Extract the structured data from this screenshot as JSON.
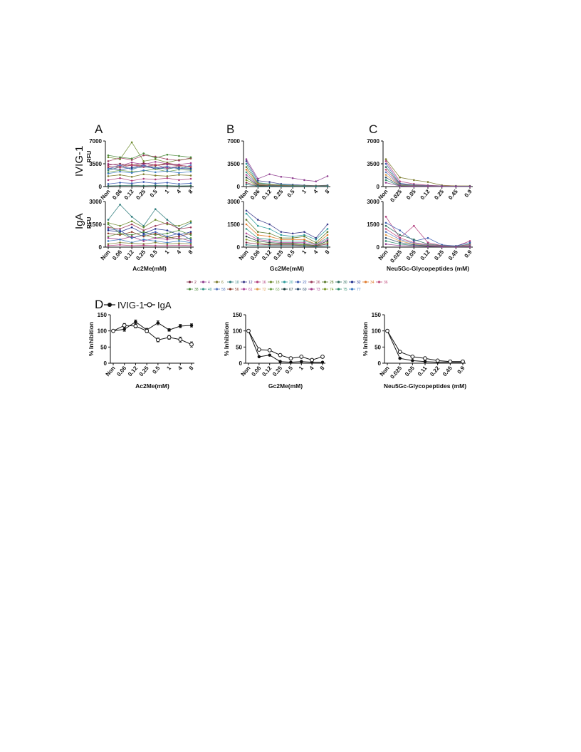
{
  "figure": {
    "panel_letters": [
      "A",
      "B",
      "C",
      "D"
    ],
    "row_titles": [
      {
        "title": "IVIG-1",
        "unit": "RFU"
      },
      {
        "title": "IgA",
        "unit": "RFU"
      }
    ],
    "legend_ids": [
      "2",
      "4",
      "6",
      "10",
      "12",
      "16",
      "18",
      "20",
      "22",
      "26",
      "28",
      "30",
      "32",
      "34",
      "36",
      "38",
      "40",
      "58",
      "56",
      "61",
      "72",
      "63",
      "67",
      "69",
      "73",
      "74",
      "75",
      "77"
    ],
    "legend_colors": [
      "#7a1f3d",
      "#8e3b8e",
      "#7a7a2a",
      "#2a7a7a",
      "#3a3a8a",
      "#b03a7a",
      "#6a8a2a",
      "#2a9a9a",
      "#3a5ab0",
      "#9a3a5a",
      "#5a7a2a",
      "#2a6a5a",
      "#1a2a8a",
      "#e07a2a",
      "#c04a7a",
      "#4a8a3a",
      "#3a9a8a",
      "#5a7ac0",
      "#8a3a2a",
      "#b04a9a",
      "#e09a4a",
      "#6aa04a",
      "#1a3a3a",
      "#2a4a6a",
      "#a03a8a",
      "#7a9a2a",
      "#2a8a6a",
      "#3a7ac0"
    ],
    "d_legend": {
      "label": "D",
      "series1": "IVIG-1",
      "series2": "IgA"
    }
  },
  "chart_data": [
    {
      "panel": "A",
      "row": "IVIG-1",
      "type": "line",
      "categories": [
        "Non",
        "0.06",
        "0.12",
        "0.25",
        "0.5",
        "1",
        "4",
        "8"
      ],
      "ylabel": "RFU",
      "xlabel": "",
      "yticks": [
        "0",
        "3500",
        "7000"
      ],
      "ylim": [
        0,
        7000
      ],
      "series": [
        {
          "values": [
            3300,
            3500,
            3200,
            3600,
            3300,
            3400,
            3200,
            3100
          ]
        },
        {
          "values": [
            2500,
            3000,
            2800,
            3000,
            2900,
            2700,
            3000,
            2800
          ]
        },
        {
          "values": [
            4500,
            4200,
            6800,
            3900,
            4200,
            3700,
            4100,
            4300
          ]
        },
        {
          "values": [
            3900,
            4400,
            4100,
            4800,
            4600,
            4200,
            4000,
            4400
          ]
        },
        {
          "values": [
            2800,
            2600,
            2900,
            3300,
            2700,
            3000,
            2800,
            2700
          ]
        },
        {
          "values": [
            4800,
            4500,
            4300,
            5100,
            4400,
            4900,
            4700,
            4500
          ]
        },
        {
          "values": [
            3000,
            3100,
            3400,
            3100,
            3200,
            3600,
            3300,
            3000
          ]
        },
        {
          "values": [
            2200,
            2500,
            2300,
            2400,
            2700,
            2300,
            2600,
            2500
          ]
        },
        {
          "values": [
            3500,
            3200,
            3700,
            3400,
            3800,
            3500,
            3400,
            3600
          ]
        },
        {
          "values": [
            2000,
            2300,
            2100,
            2500,
            2200,
            2400,
            2100,
            2300
          ]
        },
        {
          "values": [
            1600,
            1800,
            1500,
            1900,
            1700,
            1600,
            1800,
            1700
          ]
        },
        {
          "values": [
            1000,
            1300,
            900,
            1200,
            1100,
            1300,
            1000,
            1200
          ]
        },
        {
          "values": [
            400,
            600,
            500,
            700,
            500,
            600,
            400,
            500
          ]
        },
        {
          "values": [
            100,
            150,
            200,
            120,
            180,
            150,
            100,
            130
          ]
        },
        {
          "values": [
            3100,
            2900,
            3300,
            3000,
            3400,
            2800,
            3200,
            3100
          ]
        },
        {
          "values": [
            2700,
            3300,
            2600,
            3200,
            2900,
            3100,
            2700,
            3300
          ]
        }
      ]
    },
    {
      "panel": "B",
      "row": "IVIG-1",
      "type": "line",
      "categories": [
        "Non",
        "0.06",
        "0.12",
        "0.25",
        "0.5",
        "1",
        "4",
        "8"
      ],
      "ylabel": "",
      "xlabel": "",
      "yticks": [
        "0",
        "3500",
        "7000"
      ],
      "ylim": [
        0,
        7000
      ],
      "series": [
        {
          "values": [
            4200,
            1200,
            1900,
            1500,
            1300,
            1000,
            800,
            1600
          ]
        },
        {
          "values": [
            3900,
            900,
            700,
            400,
            300,
            200,
            150,
            200
          ]
        },
        {
          "values": [
            3500,
            600,
            400,
            300,
            200,
            150,
            100,
            150
          ]
        },
        {
          "values": [
            3000,
            500,
            300,
            200,
            150,
            100,
            100,
            100
          ]
        },
        {
          "values": [
            2600,
            400,
            300,
            150,
            100,
            100,
            80,
            90
          ]
        },
        {
          "values": [
            2200,
            300,
            200,
            120,
            90,
            80,
            60,
            70
          ]
        },
        {
          "values": [
            1800,
            250,
            150,
            100,
            80,
            60,
            50,
            60
          ]
        },
        {
          "values": [
            1400,
            200,
            120,
            90,
            70,
            50,
            40,
            50
          ]
        },
        {
          "values": [
            1000,
            150,
            100,
            70,
            60,
            40,
            30,
            40
          ]
        },
        {
          "values": [
            600,
            100,
            80,
            60,
            50,
            30,
            30,
            30
          ]
        },
        {
          "values": [
            300,
            80,
            60,
            50,
            40,
            30,
            20,
            30
          ]
        }
      ]
    },
    {
      "panel": "C",
      "row": "IVIG-1",
      "type": "line",
      "categories": [
        "Non",
        "0.025",
        "0.05",
        "0.12",
        "0.25",
        "0.45",
        "0.9"
      ],
      "ylabel": "",
      "xlabel": "",
      "yticks": [
        "0",
        "3500",
        "7000"
      ],
      "ylim": [
        0,
        7000
      ],
      "series": [
        {
          "values": [
            4200,
            1400,
            1000,
            700,
            200,
            100,
            100
          ]
        },
        {
          "values": [
            3900,
            800,
            400,
            200,
            100,
            80,
            60
          ]
        },
        {
          "values": [
            3500,
            500,
            250,
            150,
            80,
            60,
            50
          ]
        },
        {
          "values": [
            3000,
            400,
            200,
            120,
            70,
            50,
            40
          ]
        },
        {
          "values": [
            2600,
            300,
            150,
            100,
            60,
            40,
            30
          ]
        },
        {
          "values": [
            2200,
            250,
            120,
            80,
            50,
            30,
            30
          ]
        },
        {
          "values": [
            1800,
            200,
            100,
            60,
            40,
            30,
            20
          ]
        },
        {
          "values": [
            1400,
            150,
            80,
            50,
            30,
            20,
            20
          ]
        },
        {
          "values": [
            1000,
            100,
            60,
            40,
            30,
            20,
            20
          ]
        },
        {
          "values": [
            600,
            80,
            50,
            30,
            20,
            20,
            10
          ]
        }
      ]
    },
    {
      "panel": "A",
      "row": "IgA",
      "type": "line",
      "categories": [
        "Non",
        "0.06",
        "0.12",
        "0.25",
        "0.5",
        "1",
        "4",
        "8"
      ],
      "ylabel": "RFU",
      "xlabel": "Ac2Me(mM)",
      "yticks": [
        "0",
        "1500",
        "3000"
      ],
      "ylim": [
        0,
        3000
      ],
      "series": [
        {
          "values": [
            1800,
            2800,
            2000,
            1400,
            2500,
            1800,
            1200,
            1600
          ]
        },
        {
          "values": [
            1600,
            1400,
            1700,
            1300,
            1800,
            1500,
            1400,
            1700
          ]
        },
        {
          "values": [
            1300,
            1200,
            1500,
            1100,
            1400,
            1600,
            1200,
            1300
          ]
        },
        {
          "values": [
            1100,
            1000,
            1300,
            900,
            1200,
            1100,
            800,
            1000
          ]
        },
        {
          "values": [
            1500,
            900,
            800,
            1000,
            800,
            900,
            1100,
            800
          ]
        },
        {
          "values": [
            900,
            800,
            1000,
            700,
            900,
            600,
            700,
            900
          ]
        },
        {
          "values": [
            700,
            900,
            600,
            800,
            600,
            700,
            500,
            600
          ]
        },
        {
          "values": [
            600,
            500,
            700,
            400,
            600,
            500,
            600,
            400
          ]
        },
        {
          "values": [
            400,
            500,
            300,
            500,
            400,
            300,
            400,
            300
          ]
        },
        {
          "values": [
            200,
            300,
            250,
            200,
            300,
            200,
            250,
            200
          ]
        },
        {
          "values": [
            100,
            150,
            100,
            120,
            100,
            100,
            130,
            100
          ]
        },
        {
          "values": [
            1200,
            1100,
            600,
            800,
            1000,
            700,
            900,
            500
          ]
        }
      ]
    },
    {
      "panel": "B",
      "row": "IgA",
      "type": "line",
      "categories": [
        "Non",
        "0.06",
        "0.12",
        "0.25",
        "0.5",
        "1",
        "4",
        "8"
      ],
      "ylabel": "",
      "xlabel": "Gc2Me(mM)",
      "yticks": [
        "0",
        "1500",
        "3000"
      ],
      "ylim": [
        0,
        3000
      ],
      "series": [
        {
          "values": [
            2400,
            1800,
            1500,
            1000,
            900,
            1000,
            600,
            1500
          ]
        },
        {
          "values": [
            2200,
            1400,
            1200,
            800,
            700,
            800,
            500,
            1200
          ]
        },
        {
          "values": [
            1800,
            1000,
            900,
            600,
            600,
            700,
            300,
            1000
          ]
        },
        {
          "values": [
            1500,
            800,
            700,
            500,
            500,
            500,
            200,
            800
          ]
        },
        {
          "values": [
            1200,
            600,
            500,
            400,
            400,
            400,
            200,
            600
          ]
        },
        {
          "values": [
            900,
            500,
            400,
            300,
            300,
            300,
            150,
            500
          ]
        },
        {
          "values": [
            700,
            400,
            300,
            250,
            250,
            200,
            100,
            400
          ]
        },
        {
          "values": [
            500,
            300,
            200,
            200,
            200,
            150,
            100,
            300
          ]
        },
        {
          "values": [
            300,
            200,
            150,
            150,
            150,
            100,
            80,
            200
          ]
        },
        {
          "values": [
            150,
            100,
            100,
            100,
            100,
            80,
            50,
            100
          ]
        }
      ]
    },
    {
      "panel": "C",
      "row": "IgA",
      "type": "line",
      "categories": [
        "Non",
        "0.025",
        "0.05",
        "0.12",
        "0.25",
        "0.45",
        "0.9"
      ],
      "ylabel": "",
      "xlabel": "Neu5Gc-Glycopeptides (mM)",
      "yticks": [
        "0",
        "1500",
        "3000"
      ],
      "ylim": [
        0,
        3000
      ],
      "series": [
        {
          "values": [
            2000,
            600,
            1400,
            300,
            100,
            50,
            400
          ]
        },
        {
          "values": [
            1600,
            1100,
            400,
            600,
            150,
            80,
            300
          ]
        },
        {
          "values": [
            1400,
            800,
            500,
            200,
            100,
            50,
            200
          ]
        },
        {
          "values": [
            1200,
            600,
            300,
            150,
            80,
            40,
            150
          ]
        },
        {
          "values": [
            1000,
            500,
            250,
            120,
            60,
            30,
            100
          ]
        },
        {
          "values": [
            800,
            400,
            200,
            100,
            50,
            30,
            80
          ]
        },
        {
          "values": [
            600,
            300,
            150,
            80,
            40,
            20,
            60
          ]
        },
        {
          "values": [
            400,
            200,
            100,
            60,
            30,
            20,
            40
          ]
        },
        {
          "values": [
            200,
            100,
            80,
            40,
            20,
            10,
            20
          ]
        }
      ]
    },
    {
      "panel": "D1",
      "type": "line",
      "categories": [
        "Non",
        "0.06",
        "0.12",
        "0.25",
        "0.5",
        "1",
        "4",
        "8"
      ],
      "ylabel": "% Inhibition",
      "xlabel": "Ac2Me(mM)",
      "yticks": [
        "0",
        "50",
        "100",
        "150"
      ],
      "ylim": [
        0,
        150
      ],
      "series": [
        {
          "name": "IVIG-1",
          "values": [
            100,
            105,
            128,
            103,
            125,
            103,
            115,
            117
          ],
          "err": [
            0,
            6,
            6,
            5,
            6,
            4,
            5,
            5
          ]
        },
        {
          "name": "IgA",
          "values": [
            100,
            117,
            115,
            100,
            72,
            80,
            73,
            58
          ],
          "err": [
            0,
            6,
            6,
            5,
            6,
            6,
            8,
            8
          ]
        }
      ]
    },
    {
      "panel": "D2",
      "type": "line",
      "categories": [
        "Non",
        "0.06",
        "0.12",
        "0.25",
        "0.5",
        "1",
        "4",
        "8"
      ],
      "ylabel": "% Inhibition",
      "xlabel": "Gc2Me(mM)",
      "yticks": [
        "0",
        "50",
        "100",
        "150"
      ],
      "ylim": [
        0,
        150
      ],
      "series": [
        {
          "name": "IVIG-1",
          "values": [
            100,
            20,
            25,
            5,
            3,
            5,
            3,
            3
          ],
          "err": [
            0,
            0,
            0,
            0,
            0,
            0,
            0,
            0
          ]
        },
        {
          "name": "IgA",
          "values": [
            100,
            42,
            40,
            25,
            15,
            20,
            10,
            20
          ],
          "err": [
            0,
            0,
            0,
            0,
            0,
            0,
            0,
            0
          ]
        }
      ]
    },
    {
      "panel": "D3",
      "type": "line",
      "categories": [
        "Non",
        "0.025",
        "0.05",
        "0.11",
        "0.22",
        "0.45",
        "0.9"
      ],
      "ylabel": "% Inhibition",
      "xlabel": "Neu5Gc-Glycopeptides (mM)",
      "yticks": [
        "0",
        "50",
        "100",
        "150"
      ],
      "ylim": [
        0,
        150
      ],
      "series": [
        {
          "name": "IVIG-1",
          "values": [
            100,
            15,
            8,
            5,
            3,
            3,
            3
          ],
          "err": [
            0,
            0,
            0,
            0,
            0,
            0,
            0
          ]
        },
        {
          "name": "IgA",
          "values": [
            100,
            35,
            20,
            15,
            8,
            5,
            5
          ],
          "err": [
            0,
            0,
            0,
            0,
            0,
            0,
            0
          ]
        }
      ]
    }
  ]
}
